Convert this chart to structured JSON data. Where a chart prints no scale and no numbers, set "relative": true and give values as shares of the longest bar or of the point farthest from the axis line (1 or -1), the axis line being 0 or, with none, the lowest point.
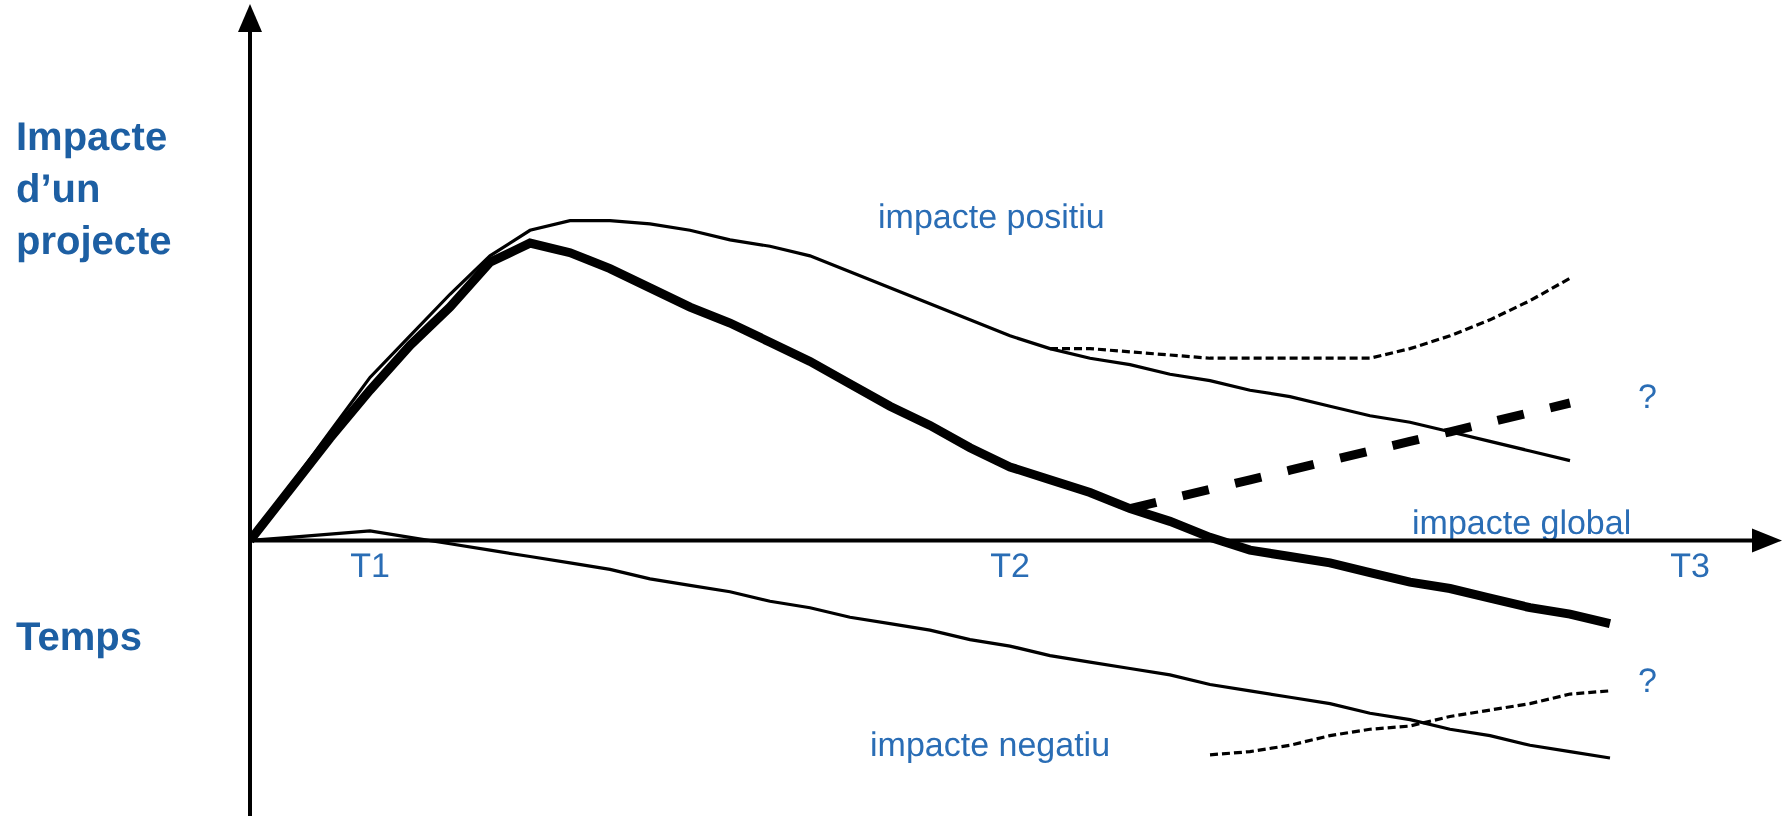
{
  "chart_data": {
    "type": "line",
    "relative": true,
    "ylabel": "Impacte d’un projecte",
    "xlabel": "Temps",
    "categories": [
      null,
      null,
      null,
      "T1",
      null,
      null,
      null,
      null,
      null,
      null,
      null,
      null,
      null,
      null,
      null,
      null,
      null,
      null,
      null,
      "T2",
      null,
      null,
      null,
      null,
      null,
      null,
      null,
      null,
      null,
      null,
      null,
      null,
      null,
      null,
      null,
      null,
      "T3",
      null,
      null
    ],
    "marker": "none",
    "line_style": "solid",
    "series": [
      {
        "color": "#000000",
        "values": [
          0,
          0.17,
          0.34,
          0.51,
          0.64,
          0.77,
          0.89,
          0.97,
          1,
          1,
          0.99,
          0.97,
          0.94,
          0.92,
          0.89,
          0.84,
          0.79,
          0.74,
          0.69,
          0.64,
          0.6,
          0.57,
          0.55,
          0.52,
          0.5,
          0.47,
          0.45,
          0.42,
          0.39,
          0.37,
          0.34,
          0.31,
          0.28,
          0.25,
          null,
          null,
          null,
          null,
          null
        ]
      },
      {
        "color": "#000000",
        "values": [
          0,
          0.16,
          0.32,
          0.47,
          0.61,
          0.73,
          0.87,
          0.93,
          0.9,
          0.85,
          0.79,
          0.73,
          0.68,
          0.62,
          0.56,
          0.49,
          0.42,
          0.36,
          0.29,
          0.23,
          0.19,
          0.15,
          0.1,
          0.06,
          0.01,
          -0.03,
          -0.05,
          -0.07,
          -0.1,
          -0.13,
          -0.15,
          -0.18,
          -0.21,
          -0.23,
          -0.26,
          null,
          null,
          null,
          null
        ]
      },
      {
        "color": "#000000",
        "values": [
          0,
          0.01,
          0.02,
          0.03,
          0.01,
          -0.01,
          -0.03,
          -0.05,
          -0.07,
          -0.09,
          -0.12,
          -0.14,
          -0.16,
          -0.19,
          -0.21,
          -0.24,
          -0.26,
          -0.28,
          -0.31,
          -0.33,
          -0.36,
          -0.38,
          -0.4,
          -0.42,
          -0.45,
          -0.47,
          -0.49,
          -0.51,
          -0.54,
          -0.56,
          -0.59,
          -0.61,
          -0.64,
          -0.66,
          -0.68,
          null,
          null,
          null,
          null
        ]
      },
      {
        "color": "#000000",
        "line_style": "dashed",
        "values": [
          null,
          null,
          null,
          null,
          null,
          null,
          null,
          null,
          null,
          null,
          null,
          null,
          null,
          null,
          null,
          null,
          null,
          null,
          null,
          null,
          0.6,
          0.6,
          0.59,
          0.58,
          0.57,
          0.57,
          0.57,
          0.57,
          0.57,
          0.6,
          0.64,
          0.69,
          0.75,
          0.82,
          null,
          null,
          null,
          null,
          null
        ]
      },
      {
        "color": "#000000",
        "line_style": "dashed",
        "values": [
          null,
          null,
          null,
          null,
          null,
          null,
          null,
          null,
          null,
          null,
          null,
          null,
          null,
          null,
          null,
          null,
          null,
          null,
          null,
          null,
          null,
          null,
          0.1,
          0.13,
          0.16,
          0.19,
          0.22,
          0.25,
          0.28,
          0.31,
          0.34,
          0.37,
          0.4,
          0.43,
          null,
          null,
          null,
          null,
          null
        ]
      },
      {
        "color": "#000000",
        "line_style": "dashed",
        "values": [
          null,
          null,
          null,
          null,
          null,
          null,
          null,
          null,
          null,
          null,
          null,
          null,
          null,
          null,
          null,
          null,
          null,
          null,
          null,
          null,
          null,
          null,
          null,
          null,
          -0.67,
          -0.66,
          -0.64,
          -0.61,
          -0.59,
          -0.58,
          -0.55,
          -0.53,
          -0.51,
          -0.48,
          -0.47,
          null,
          null,
          null,
          null
        ]
      }
    ],
    "annotations": [
      "impacte positiu",
      "impacte global",
      "impacte negatiu",
      "?",
      "?"
    ]
  }
}
